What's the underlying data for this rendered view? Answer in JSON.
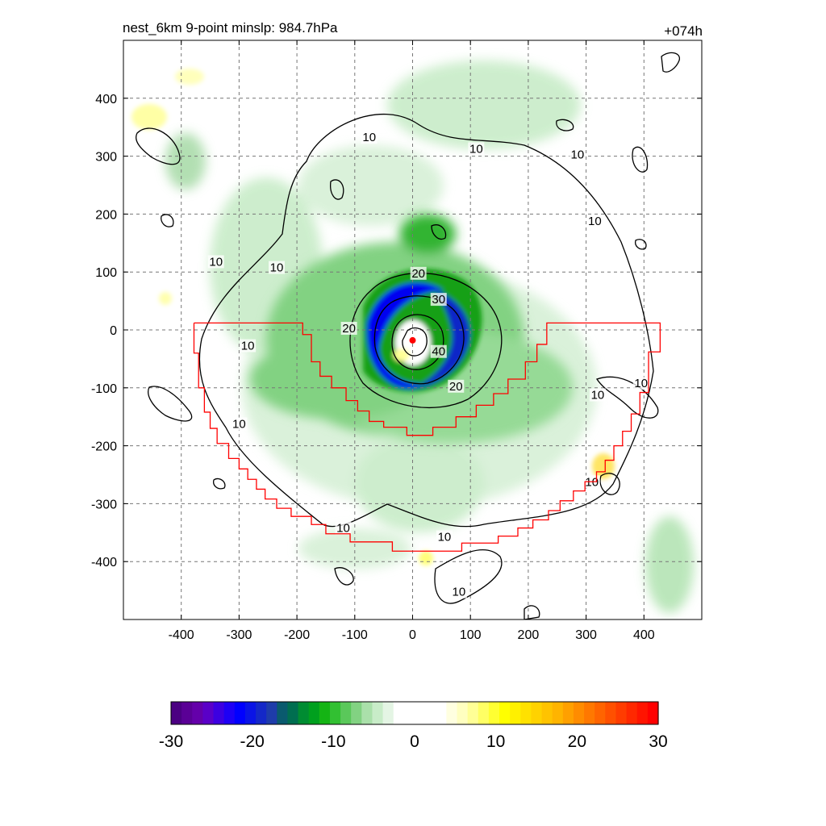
{
  "chart_data": {
    "type": "heatmap",
    "title": "nest_6km  9-point minslp: 984.7hPa",
    "forecast_hour": "+074h",
    "xlim": [
      -500,
      500
    ],
    "ylim": [
      -500,
      500
    ],
    "x_ticks": [
      -400,
      -300,
      -200,
      -100,
      0,
      100,
      200,
      300,
      400
    ],
    "y_ticks": [
      400,
      300,
      200,
      100,
      0,
      -100,
      -200,
      -300,
      -400
    ],
    "grid": true,
    "center": [
      0,
      -18
    ],
    "contours": {
      "color": "#000000",
      "levels": [
        10,
        20,
        30,
        40
      ],
      "labels": [
        {
          "text": "10",
          "x": -75,
          "y": 330
        },
        {
          "text": "10",
          "x": 110,
          "y": 310
        },
        {
          "text": "10",
          "x": 285,
          "y": 300
        },
        {
          "text": "10",
          "x": 315,
          "y": 185
        },
        {
          "text": "10",
          "x": -340,
          "y": 115
        },
        {
          "text": "10",
          "x": -235,
          "y": 105
        },
        {
          "text": "10",
          "x": -285,
          "y": -30
        },
        {
          "text": "10",
          "x": 395,
          "y": -95
        },
        {
          "text": "10",
          "x": 320,
          "y": -115
        },
        {
          "text": "10",
          "x": -300,
          "y": -165
        },
        {
          "text": "10",
          "x": 310,
          "y": -265
        },
        {
          "text": "10",
          "x": -120,
          "y": -345
        },
        {
          "text": "10",
          "x": 55,
          "y": -360
        },
        {
          "text": "10",
          "x": 80,
          "y": -455
        },
        {
          "text": "20",
          "x": 10,
          "y": 95
        },
        {
          "text": "20",
          "x": -110,
          "y": 0
        },
        {
          "text": "20",
          "x": 75,
          "y": -100
        },
        {
          "text": "30",
          "x": 45,
          "y": 50
        },
        {
          "text": "40",
          "x": 45,
          "y": -40
        }
      ]
    },
    "region_outline": {
      "color": "#ff0000",
      "points": [
        [
          -378,
          12
        ],
        [
          -190,
          12
        ],
        [
          -190,
          -8
        ],
        [
          -175,
          -8
        ],
        [
          -175,
          -55
        ],
        [
          -160,
          -55
        ],
        [
          -160,
          -80
        ],
        [
          -140,
          -80
        ],
        [
          -140,
          -100
        ],
        [
          -115,
          -100
        ],
        [
          -115,
          -122
        ],
        [
          -95,
          -122
        ],
        [
          -95,
          -140
        ],
        [
          -75,
          -140
        ],
        [
          -75,
          -158
        ],
        [
          -50,
          -158
        ],
        [
          -50,
          -168
        ],
        [
          -10,
          -168
        ],
        [
          -10,
          -182
        ],
        [
          35,
          -182
        ],
        [
          35,
          -168
        ],
        [
          75,
          -168
        ],
        [
          75,
          -150
        ],
        [
          110,
          -150
        ],
        [
          110,
          -130
        ],
        [
          140,
          -130
        ],
        [
          140,
          -110
        ],
        [
          165,
          -110
        ],
        [
          165,
          -85
        ],
        [
          195,
          -85
        ],
        [
          195,
          -55
        ],
        [
          215,
          -55
        ],
        [
          215,
          -25
        ],
        [
          232,
          -25
        ],
        [
          232,
          12
        ],
        [
          428,
          12
        ],
        [
          428,
          -38
        ],
        [
          408,
          -38
        ],
        [
          408,
          -108
        ],
        [
          393,
          -108
        ],
        [
          393,
          -145
        ],
        [
          378,
          -145
        ],
        [
          378,
          -175
        ],
        [
          363,
          -175
        ],
        [
          363,
          -200
        ],
        [
          348,
          -200
        ],
        [
          348,
          -225
        ],
        [
          333,
          -225
        ],
        [
          333,
          -245
        ],
        [
          318,
          -245
        ],
        [
          318,
          -262
        ],
        [
          298,
          -262
        ],
        [
          298,
          -278
        ],
        [
          278,
          -278
        ],
        [
          278,
          -295
        ],
        [
          255,
          -295
        ],
        [
          255,
          -312
        ],
        [
          235,
          -312
        ],
        [
          235,
          -328
        ],
        [
          208,
          -328
        ],
        [
          208,
          -342
        ],
        [
          182,
          -342
        ],
        [
          182,
          -356
        ],
        [
          148,
          -356
        ],
        [
          148,
          -368
        ],
        [
          85,
          -368
        ],
        [
          85,
          -382
        ],
        [
          -35,
          -382
        ],
        [
          -35,
          -366
        ],
        [
          -108,
          -366
        ],
        [
          -108,
          -352
        ],
        [
          -150,
          -352
        ],
        [
          -150,
          -336
        ],
        [
          -175,
          -336
        ],
        [
          -175,
          -322
        ],
        [
          -210,
          -322
        ],
        [
          -210,
          -308
        ],
        [
          -235,
          -308
        ],
        [
          -235,
          -292
        ],
        [
          -255,
          -292
        ],
        [
          -255,
          -275
        ],
        [
          -270,
          -275
        ],
        [
          -270,
          -258
        ],
        [
          -285,
          -258
        ],
        [
          -285,
          -240
        ],
        [
          -300,
          -240
        ],
        [
          -300,
          -222
        ],
        [
          -318,
          -222
        ],
        [
          -318,
          -196
        ],
        [
          -338,
          -196
        ],
        [
          -338,
          -170
        ],
        [
          -350,
          -170
        ],
        [
          -350,
          -142
        ],
        [
          -360,
          -142
        ],
        [
          -360,
          -100
        ],
        [
          -370,
          -100
        ],
        [
          -370,
          -40
        ],
        [
          -378,
          -40
        ],
        [
          -378,
          12
        ]
      ]
    },
    "colorbar": {
      "min": -30,
      "max": 30,
      "ticks": [
        -30,
        -20,
        -10,
        0,
        10,
        20,
        30
      ],
      "colors": [
        "#4b0082",
        "#5a0096",
        "#6400aa",
        "#5a00c8",
        "#3c00e1",
        "#1e00f5",
        "#0000ff",
        "#0a14e6",
        "#1428c8",
        "#1e3caa",
        "#0a5a6e",
        "#006e50",
        "#008c32",
        "#00a01e",
        "#14b414",
        "#32c032",
        "#5ac85a",
        "#82d282",
        "#aae0aa",
        "#c8ecc8",
        "#e4f5e4",
        "#ffffff",
        "#ffffff",
        "#ffffff",
        "#ffffff",
        "#ffffff",
        "#ffffe0",
        "#ffffc0",
        "#ffff96",
        "#ffff64",
        "#ffff32",
        "#ffff00",
        "#fff000",
        "#ffe100",
        "#ffd200",
        "#ffc300",
        "#ffb400",
        "#ffa000",
        "#ff8c00",
        "#ff7800",
        "#ff6400",
        "#ff5000",
        "#ff3c00",
        "#ff2800",
        "#ff1400",
        "#ff0000"
      ]
    }
  }
}
